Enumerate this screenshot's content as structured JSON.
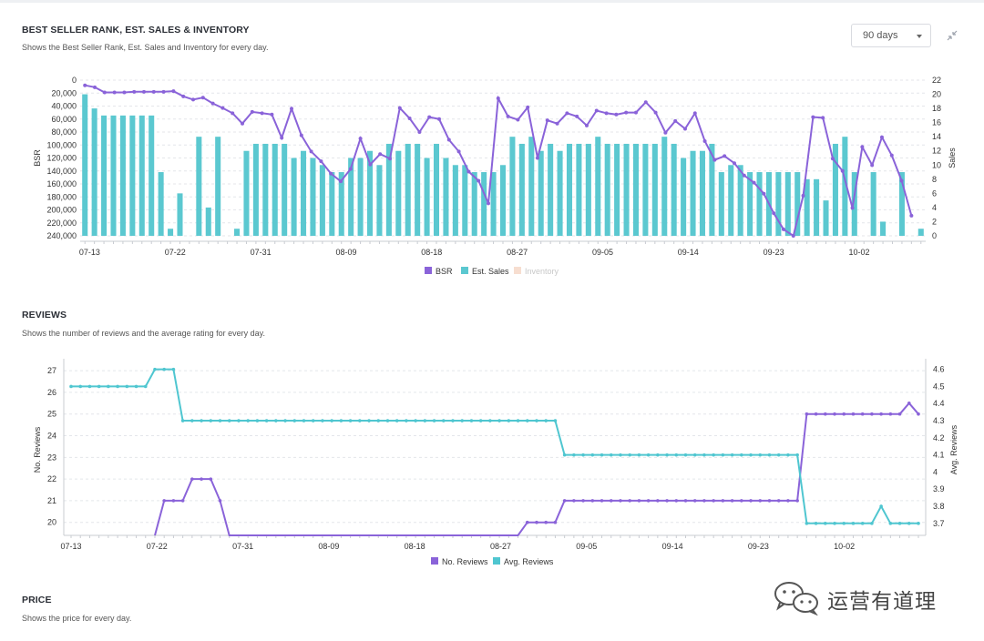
{
  "sections": {
    "bsr": {
      "title": "BEST SELLER RANK, EST. SALES & INVENTORY",
      "subtitle": "Shows the Best Seller Rank, Est. Sales and Inventory for every day."
    },
    "reviews": {
      "title": "REVIEWS",
      "subtitle": "Shows the number of reviews and the average rating for every day."
    },
    "price": {
      "title": "PRICE",
      "subtitle": "Shows the price for every day."
    }
  },
  "range_select": {
    "value": "90 days"
  },
  "watermark": {
    "text": "运营有道理"
  },
  "colors": {
    "bsr": "#8a63d9",
    "sales": "#5bc8d0",
    "inventory": "#f7ded0",
    "reviews": "#8a63d9",
    "avg": "#4fc6d0",
    "grid": "#e4e6ea"
  },
  "chart_data": [
    {
      "type": "bar+line",
      "x_ticks": [
        "07-13",
        "07-22",
        "07-31",
        "08-09",
        "08-18",
        "08-27",
        "09-05",
        "09-14",
        "09-23",
        "10-02"
      ],
      "left_axis": {
        "label": "BSR",
        "ticks": [
          "0",
          "20,000",
          "40,000",
          "60,000",
          "80,000",
          "100,000",
          "120,000",
          "140,000",
          "160,000",
          "180,000",
          "200,000",
          "220,000",
          "240,000"
        ],
        "reversed": true,
        "ylim": [
          0,
          240000
        ]
      },
      "right_axis": {
        "label": "Sales",
        "ticks": [
          "0",
          "2",
          "4",
          "6",
          "8",
          "10",
          "12",
          "14",
          "16",
          "18",
          "20",
          "22"
        ],
        "ylim": [
          0,
          22
        ]
      },
      "legend": [
        "BSR",
        "Est. Sales",
        "Inventory"
      ],
      "legend_placement": "bottom-center",
      "inventory_hidden": true,
      "sales": [
        20,
        18,
        17,
        17,
        17,
        17,
        17,
        17,
        9,
        1,
        6,
        0,
        14,
        4,
        14,
        0,
        1,
        12,
        13,
        13,
        13,
        13,
        11,
        12,
        11,
        10,
        9,
        9,
        11,
        11,
        12,
        10,
        13,
        12,
        13,
        13,
        11,
        13,
        11,
        10,
        10,
        9,
        9,
        9,
        10,
        14,
        13,
        14,
        12,
        13,
        12,
        13,
        13,
        13,
        14,
        13,
        13,
        13,
        13,
        13,
        13,
        14,
        13,
        11,
        12,
        12,
        13,
        9,
        10,
        10,
        9,
        9,
        9,
        9,
        9,
        9,
        8,
        8,
        5,
        13,
        14,
        9,
        0,
        9,
        2,
        0,
        9,
        0,
        1
      ],
      "bsr": [
        8000,
        11000,
        19000,
        19000,
        19000,
        18000,
        18000,
        18000,
        18000,
        17000,
        25000,
        30000,
        27000,
        36000,
        43000,
        51000,
        67000,
        49000,
        51000,
        53000,
        89000,
        44000,
        85000,
        110000,
        125000,
        144000,
        156000,
        137000,
        90000,
        130000,
        114000,
        121000,
        43000,
        59000,
        80000,
        57000,
        60000,
        92000,
        110000,
        141000,
        155000,
        190000,
        28000,
        56000,
        61000,
        42000,
        120000,
        62000,
        67000,
        51000,
        56000,
        70000,
        47000,
        51000,
        53000,
        50000,
        50000,
        34000,
        50000,
        81000,
        63000,
        75000,
        51000,
        94000,
        123000,
        117000,
        128000,
        147000,
        158000,
        175000,
        205000,
        230000,
        240000,
        178000,
        57000,
        58000,
        121000,
        140000,
        197000,
        103000,
        131000,
        88000,
        116000,
        155000,
        209000
      ],
      "bsr_x": [
        0,
        1,
        2,
        3,
        4,
        5,
        6,
        7,
        8,
        9,
        10,
        11,
        12,
        13,
        14,
        15,
        16,
        17,
        18,
        19,
        20,
        21,
        22,
        23,
        24,
        25,
        26,
        27,
        28,
        29,
        30,
        31,
        32,
        33,
        34,
        35,
        36,
        37,
        38,
        39,
        40,
        41,
        42,
        43,
        44,
        45,
        46,
        47,
        48,
        49,
        50,
        51,
        52,
        53,
        54,
        55,
        56,
        57,
        58,
        59,
        60,
        61,
        62,
        63,
        64,
        65,
        66,
        67,
        68,
        69,
        70,
        71,
        72,
        73,
        74,
        75,
        76,
        77,
        78,
        79,
        80,
        81,
        82,
        83,
        84
      ]
    },
    {
      "type": "line",
      "x_ticks": [
        "07-13",
        "07-22",
        "07-31",
        "08-09",
        "08-18",
        "08-27",
        "09-05",
        "09-14",
        "09-23",
        "10-02"
      ],
      "left_axis": {
        "label": "No. Reviews",
        "ticks": [
          "20",
          "21",
          "22",
          "23",
          "24",
          "25",
          "26",
          "27"
        ],
        "ylim": [
          19.4,
          27.3
        ]
      },
      "right_axis": {
        "label": "Avg. Reviews",
        "ticks": [
          "3.7",
          "3.8",
          "3.9",
          "4",
          "4.1",
          "4.2",
          "4.3",
          "4.4",
          "4.5",
          "4.6"
        ],
        "ylim": [
          3.63,
          4.63
        ]
      },
      "legend": [
        "No. Reviews",
        "Avg. Reviews"
      ],
      "legend_placement": "bottom-center",
      "series": [
        {
          "name": "No. Reviews",
          "values": [
            null,
            null,
            null,
            null,
            null,
            null,
            null,
            null,
            null,
            19.4,
            21,
            21,
            21,
            22,
            22,
            22,
            21,
            19.4,
            null,
            null,
            null,
            null,
            null,
            null,
            null,
            null,
            null,
            null,
            null,
            null,
            null,
            null,
            null,
            null,
            null,
            null,
            null,
            null,
            null,
            null,
            null,
            null,
            null,
            null,
            null,
            null,
            null,
            null,
            19.4,
            20,
            20,
            20,
            20,
            21,
            21,
            21,
            21,
            21,
            21,
            21,
            21,
            21,
            21,
            21,
            21,
            21,
            21,
            21,
            21,
            21,
            21,
            21,
            21,
            21,
            21,
            21,
            21,
            21,
            21,
            25,
            25,
            25,
            25,
            25,
            25,
            25,
            25,
            25,
            25,
            25,
            25.5,
            25,
            25,
            25,
            25,
            25
          ]
        },
        {
          "name": "Avg. Reviews",
          "values": [
            4.5,
            4.5,
            4.5,
            4.5,
            4.5,
            4.5,
            4.5,
            4.5,
            4.5,
            4.6,
            4.6,
            4.6,
            4.3,
            4.3,
            4.3,
            4.3,
            4.3,
            4.3,
            4.3,
            4.3,
            4.3,
            4.3,
            4.3,
            4.3,
            4.3,
            4.3,
            4.3,
            4.3,
            4.3,
            4.3,
            4.3,
            4.3,
            4.3,
            4.3,
            4.3,
            4.3,
            4.3,
            4.3,
            4.3,
            4.3,
            4.3,
            4.3,
            4.3,
            4.3,
            4.3,
            4.3,
            4.3,
            4.3,
            4.3,
            4.3,
            4.3,
            4.3,
            4.3,
            4.1,
            4.1,
            4.1,
            4.1,
            4.1,
            4.1,
            4.1,
            4.1,
            4.1,
            4.1,
            4.1,
            4.1,
            4.1,
            4.1,
            4.1,
            4.1,
            4.1,
            4.1,
            4.1,
            4.1,
            4.1,
            4.1,
            4.1,
            4.1,
            4.1,
            4.1,
            3.7,
            3.7,
            3.7,
            3.7,
            3.7,
            3.7,
            3.7,
            3.7,
            3.8,
            3.7,
            3.7,
            3.7,
            3.7
          ]
        }
      ]
    }
  ]
}
